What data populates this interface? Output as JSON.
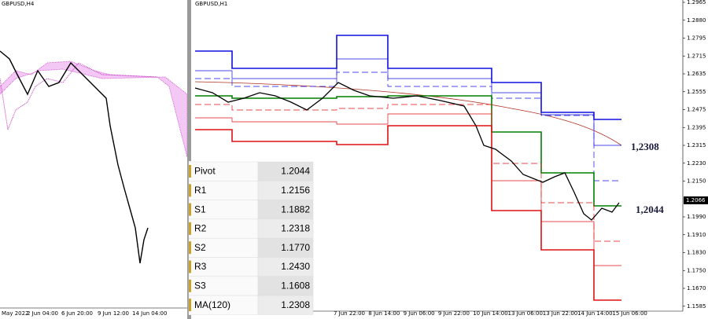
{
  "left_chart": {
    "title": "GBPUSD,H4",
    "time_labels": [
      "May 2022",
      "2 Jun 04:00",
      "6 Jun 20:00",
      "9 Jun 12:00",
      "14 Jun 04:00"
    ]
  },
  "right_chart": {
    "title": "GBPUSD,H1",
    "price_labels": [
      "1.2965",
      "1.2880",
      "1.2795",
      "1.2715",
      "1.2635",
      "1.2555",
      "1.2475",
      "1.2395",
      "1.2315",
      "1.2230",
      "1.2150",
      "1.1990",
      "1.1910",
      "1.1830",
      "1.1750",
      "1.1670",
      "1.1585"
    ],
    "current_price": "1.2066",
    "time_labels": [
      "7 Jun 22:00",
      "8 Jun 14:00",
      "9 Jun 06:00",
      "9 Jun 22:00",
      "10 Jun 14:00",
      "13 Jun 06:00",
      "13 Jun 22:00",
      "14 Jun 14:00",
      "15 Jun 06:00"
    ],
    "annotations": [
      "1,2308",
      "1,2044"
    ]
  },
  "table": {
    "rows": [
      [
        "Pivot",
        "1.2044"
      ],
      [
        "R1",
        "1.2156"
      ],
      [
        "S1",
        "1.1882"
      ],
      [
        "R2",
        "1.2318"
      ],
      [
        "S2",
        "1.1770"
      ],
      [
        "R3",
        "1.2430"
      ],
      [
        "S3",
        "1.1608"
      ],
      [
        "MA(120)",
        "1.2308"
      ]
    ]
  }
}
